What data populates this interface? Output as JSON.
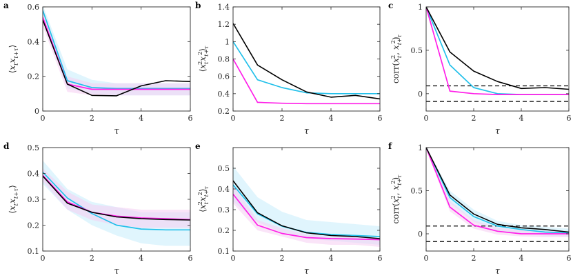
{
  "colors": {
    "black": "#000000",
    "cyan": "#22c0ea",
    "magenta": "#ff1fe8",
    "cyan_band": "#c7ecfb",
    "magenta_band": "#f6cdf3",
    "axis": "#262626",
    "dash": "#000000"
  },
  "chart_data": [
    {
      "type": "line",
      "letter": "a",
      "ylabel": "⟨x_t x_{t+τ}⟩",
      "ylabel_parts": [
        "⟨",
        "x",
        "t",
        "x",
        "t+τ",
        "⟩"
      ],
      "xlabel": "τ",
      "x": [
        0,
        1,
        2,
        3,
        4,
        5,
        6
      ],
      "xlim": [
        0,
        6
      ],
      "ylim": [
        0,
        0.6
      ],
      "xticks": [
        0,
        2,
        4,
        6
      ],
      "xtick_labels": [
        "0",
        "2",
        "4",
        "6"
      ],
      "yticks": [
        0,
        0.2,
        0.4,
        0.6
      ],
      "ytick_labels": [
        "0",
        "0.2",
        "0.4",
        "0.6"
      ],
      "bands": [
        {
          "color": "cyan",
          "lower": [
            0.55,
            0.13,
            0.1,
            0.09,
            0.09,
            0.09,
            0.09
          ],
          "upper": [
            0.61,
            0.24,
            0.18,
            0.16,
            0.16,
            0.16,
            0.16
          ]
        },
        {
          "color": "magenta",
          "lower": [
            0.49,
            0.11,
            0.09,
            0.09,
            0.09,
            0.09,
            0.09
          ],
          "upper": [
            0.57,
            0.2,
            0.16,
            0.16,
            0.16,
            0.16,
            0.16
          ]
        }
      ],
      "series": [
        {
          "name": "cyan",
          "values": [
            0.58,
            0.175,
            0.135,
            0.13,
            0.13,
            0.13,
            0.13
          ]
        },
        {
          "name": "magenta",
          "values": [
            0.54,
            0.155,
            0.125,
            0.125,
            0.125,
            0.125,
            0.125
          ]
        },
        {
          "name": "black",
          "values": [
            0.525,
            0.155,
            0.09,
            0.088,
            0.145,
            0.175,
            0.17
          ]
        }
      ],
      "hlines": []
    },
    {
      "type": "line",
      "letter": "b",
      "ylabel": "⟨x_t^2 x_{t+τ}^2⟩",
      "ylabel_parts": [
        "⟨",
        "x",
        "t",
        "2",
        "x",
        "t+τ",
        "2",
        "⟩"
      ],
      "xlabel": "τ",
      "x": [
        0,
        1,
        2,
        3,
        4,
        5,
        6
      ],
      "xlim": [
        0,
        6
      ],
      "ylim": [
        0.2,
        1.4
      ],
      "xticks": [
        0,
        2,
        4,
        6
      ],
      "xtick_labels": [
        "0",
        "2",
        "4",
        "6"
      ],
      "yticks": [
        0.2,
        0.4,
        0.6,
        0.8,
        1,
        1.2,
        1.4
      ],
      "ytick_labels": [
        "0.2",
        "0.4",
        "0.6",
        "0.8",
        "1",
        "1.2",
        "1.4"
      ],
      "bands": [],
      "series": [
        {
          "name": "cyan",
          "values": [
            1.0,
            0.56,
            0.47,
            0.41,
            0.4,
            0.4,
            0.4
          ]
        },
        {
          "name": "magenta",
          "values": [
            0.8,
            0.3,
            0.29,
            0.285,
            0.285,
            0.285,
            0.285
          ]
        },
        {
          "name": "black",
          "values": [
            1.21,
            0.73,
            0.56,
            0.42,
            0.36,
            0.38,
            0.34
          ]
        }
      ],
      "hlines": []
    },
    {
      "type": "line",
      "letter": "c",
      "ylabel": "corr(x_t^2, x_{t+τ}^2)",
      "ylabel_parts": [
        "corr(",
        "x",
        "t",
        "2",
        ", ",
        "x",
        "t+τ",
        "2",
        ")"
      ],
      "xlabel": "τ",
      "x": [
        0,
        1,
        2,
        3,
        4,
        5,
        6
      ],
      "xlim": [
        0,
        6
      ],
      "ylim": [
        -0.2,
        1
      ],
      "xticks": [
        0,
        2,
        4,
        6
      ],
      "xtick_labels": [
        "0",
        "2",
        "4",
        "6"
      ],
      "yticks": [
        0,
        0.5,
        1
      ],
      "ytick_labels": [
        "0",
        "0.5",
        "1"
      ],
      "bands": [],
      "series": [
        {
          "name": "cyan",
          "values": [
            1,
            0.33,
            0.07,
            0.0,
            -0.01,
            -0.01,
            -0.01
          ]
        },
        {
          "name": "magenta",
          "values": [
            1,
            0.03,
            0.0,
            -0.01,
            -0.01,
            -0.01,
            -0.01
          ]
        },
        {
          "name": "black",
          "values": [
            1,
            0.48,
            0.26,
            0.14,
            0.06,
            0.07,
            0.05
          ]
        }
      ],
      "hlines": [
        0.09,
        -0.09
      ]
    },
    {
      "type": "line",
      "letter": "d",
      "ylabel": "⟨x_t x_{t+τ}⟩",
      "ylabel_parts": [
        "⟨",
        "x",
        "t",
        "x",
        "t+τ",
        "⟩"
      ],
      "xlabel": "τ",
      "x": [
        0,
        1,
        2,
        3,
        4,
        5,
        6
      ],
      "xlim": [
        0,
        6
      ],
      "ylim": [
        0.1,
        0.5
      ],
      "xticks": [
        0,
        2,
        4,
        6
      ],
      "xtick_labels": [
        "0",
        "2",
        "4",
        "6"
      ],
      "yticks": [
        0.1,
        0.2,
        0.3,
        0.4,
        0.5
      ],
      "ytick_labels": [
        "0.1",
        "0.2",
        "0.3",
        "0.4",
        "0.5"
      ],
      "bands": [
        {
          "color": "cyan",
          "lower": [
            0.36,
            0.26,
            0.2,
            0.16,
            0.13,
            0.12,
            0.12
          ],
          "upper": [
            0.45,
            0.34,
            0.29,
            0.27,
            0.25,
            0.25,
            0.25
          ]
        },
        {
          "color": "magenta",
          "lower": [
            0.37,
            0.26,
            0.22,
            0.2,
            0.19,
            0.19,
            0.19
          ],
          "upper": [
            0.42,
            0.33,
            0.28,
            0.27,
            0.26,
            0.26,
            0.26
          ]
        }
      ],
      "series": [
        {
          "name": "cyan",
          "values": [
            0.405,
            0.305,
            0.245,
            0.2,
            0.185,
            0.182,
            0.182
          ]
        },
        {
          "name": "magenta",
          "values": [
            0.393,
            0.29,
            0.25,
            0.235,
            0.228,
            0.225,
            0.222
          ]
        },
        {
          "name": "black",
          "values": [
            0.39,
            0.285,
            0.25,
            0.232,
            0.225,
            0.222,
            0.22
          ]
        }
      ],
      "hlines": []
    },
    {
      "type": "line",
      "letter": "e",
      "ylabel": "⟨x_t^2 x_{t+τ}^2⟩",
      "ylabel_parts": [
        "⟨",
        "x",
        "t",
        "2",
        "x",
        "t+τ",
        "2",
        "⟩"
      ],
      "xlabel": "τ",
      "x": [
        0,
        1,
        2,
        3,
        4,
        5,
        6
      ],
      "xlim": [
        0,
        6
      ],
      "ylim": [
        0.1,
        0.6
      ],
      "xticks": [
        0,
        2,
        4,
        6
      ],
      "xtick_labels": [
        "0",
        "2",
        "4",
        "6"
      ],
      "yticks": [
        0.1,
        0.2,
        0.3,
        0.4,
        0.5
      ],
      "ytick_labels": [
        "0.1",
        "0.2",
        "0.3",
        "0.4",
        "0.5"
      ],
      "bands": [
        {
          "color": "cyan",
          "lower": [
            0.34,
            0.24,
            0.19,
            0.16,
            0.15,
            0.14,
            0.13
          ],
          "upper": [
            0.51,
            0.36,
            0.29,
            0.25,
            0.24,
            0.23,
            0.22
          ]
        },
        {
          "color": "magenta",
          "lower": [
            0.33,
            0.2,
            0.17,
            0.14,
            0.13,
            0.13,
            0.12
          ],
          "upper": [
            0.42,
            0.25,
            0.21,
            0.18,
            0.17,
            0.17,
            0.16
          ]
        }
      ],
      "series": [
        {
          "name": "cyan",
          "values": [
            0.42,
            0.28,
            0.22,
            0.19,
            0.18,
            0.175,
            0.17
          ]
        },
        {
          "name": "magenta",
          "values": [
            0.375,
            0.225,
            0.185,
            0.165,
            0.16,
            0.158,
            0.155
          ]
        },
        {
          "name": "black",
          "values": [
            0.44,
            0.285,
            0.222,
            0.188,
            0.175,
            0.17,
            0.16
          ]
        }
      ],
      "hlines": []
    },
    {
      "type": "line",
      "letter": "f",
      "ylabel": "corr(x_t^2, x_{t+τ}^2)",
      "ylabel_parts": [
        "corr(",
        "x",
        "t",
        "2",
        ", ",
        "x",
        "t+τ",
        "2",
        ")"
      ],
      "xlabel": "τ",
      "x": [
        0,
        1,
        2,
        3,
        4,
        5,
        6
      ],
      "xlim": [
        0,
        6
      ],
      "ylim": [
        -0.2,
        1
      ],
      "xticks": [
        0,
        2,
        4,
        6
      ],
      "xtick_labels": [
        "0",
        "2",
        "4",
        "6"
      ],
      "yticks": [
        0,
        0.5,
        1
      ],
      "ytick_labels": [
        "0",
        "0.5",
        "1"
      ],
      "bands": [
        {
          "color": "cyan",
          "lower": [
            0.98,
            0.36,
            0.14,
            0.04,
            0.0,
            -0.02,
            -0.03
          ],
          "upper": [
            1.0,
            0.5,
            0.28,
            0.15,
            0.1,
            0.08,
            0.06
          ]
        },
        {
          "color": "magenta",
          "lower": [
            0.98,
            0.26,
            0.06,
            -0.01,
            -0.03,
            -0.04,
            -0.04
          ],
          "upper": [
            1.0,
            0.38,
            0.16,
            0.07,
            0.04,
            0.03,
            0.03
          ]
        }
      ],
      "series": [
        {
          "name": "cyan",
          "values": [
            1,
            0.42,
            0.2,
            0.09,
            0.05,
            0.02,
            0.01
          ]
        },
        {
          "name": "magenta",
          "values": [
            1,
            0.31,
            0.1,
            0.03,
            0.0,
            0.0,
            0.0
          ]
        },
        {
          "name": "black",
          "values": [
            1,
            0.45,
            0.23,
            0.11,
            0.07,
            0.05,
            0.02
          ]
        }
      ],
      "hlines": [
        0.09,
        -0.09
      ]
    }
  ]
}
